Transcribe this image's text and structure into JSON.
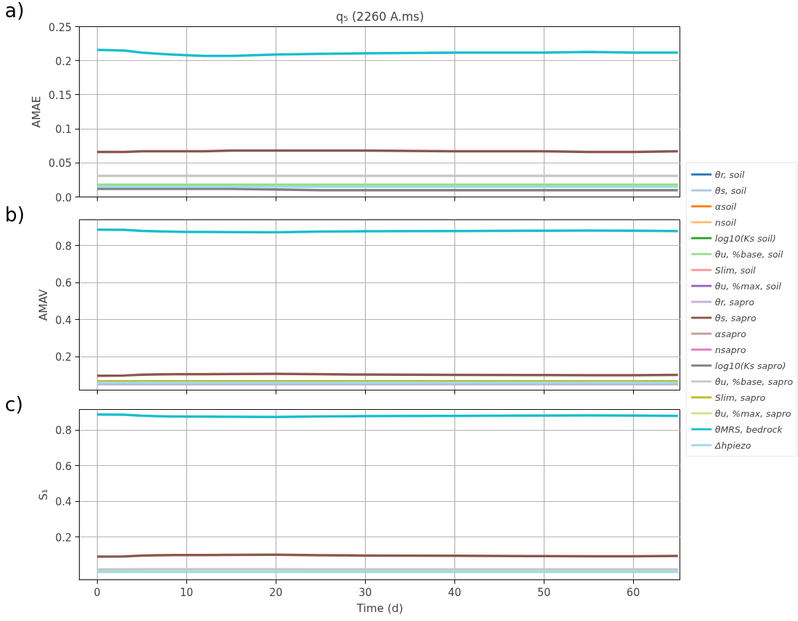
{
  "chart_data": [
    {
      "type": "line",
      "title": "q₅ (2260 A.ms)",
      "ylabel": "AMAE",
      "annotations": [
        "a)"
      ],
      "x": [
        0,
        3,
        5,
        7,
        10,
        12,
        15,
        20,
        25,
        30,
        40,
        50,
        55,
        60,
        65
      ],
      "xlim": [
        -2,
        65.3
      ],
      "xticks": [
        0,
        10,
        20,
        30,
        40,
        50,
        60
      ],
      "ylim": [
        0,
        0.25
      ],
      "yticks": [
        {
          "value": 0,
          "label": "0.0"
        },
        0.05,
        {
          "value": 0.1,
          "label": "0.1"
        },
        0.15,
        {
          "value": 0.2,
          "label": "0.2"
        },
        0.25
      ],
      "tick_labels": "y",
      "grid": true,
      "series": [
        {
          "color": "#7f7f7f",
          "values": [
            0.012,
            0.012,
            0.012,
            0.012,
            0.012,
            0.012,
            0.012,
            0.011,
            0.01,
            0.01,
            0.01,
            0.01,
            0.01,
            0.01,
            0.01
          ]
        },
        {
          "color": "#98df8a",
          "values": [
            0.018,
            0.018,
            0.018,
            0.018,
            0.018,
            0.018,
            0.018,
            0.018,
            0.018,
            0.018,
            0.018,
            0.018,
            0.018,
            0.018,
            0.018
          ]
        },
        {
          "color": "#9edae5",
          "values": [
            0.015,
            0.015,
            0.015,
            0.015,
            0.015,
            0.015,
            0.015,
            0.015,
            0.015,
            0.015,
            0.015,
            0.015,
            0.015,
            0.015,
            0.015
          ]
        },
        {
          "color": "#c7c7c7",
          "values": [
            0.031,
            0.031,
            0.031,
            0.031,
            0.031,
            0.031,
            0.031,
            0.031,
            0.031,
            0.031,
            0.031,
            0.031,
            0.031,
            0.031,
            0.031
          ]
        },
        {
          "color": "#8c564b",
          "values": [
            0.066,
            0.066,
            0.067,
            0.067,
            0.067,
            0.067,
            0.068,
            0.068,
            0.068,
            0.068,
            0.067,
            0.067,
            0.066,
            0.066,
            0.067
          ]
        },
        {
          "color": "#17becf",
          "values": [
            0.216,
            0.215,
            0.212,
            0.21,
            0.208,
            0.207,
            0.207,
            0.209,
            0.21,
            0.211,
            0.212,
            0.212,
            0.213,
            0.212,
            0.212
          ]
        }
      ]
    },
    {
      "type": "line",
      "ylabel": "AMAV",
      "annotations": [
        "b)"
      ],
      "x": [
        0,
        3,
        5,
        7,
        10,
        12,
        15,
        20,
        25,
        30,
        40,
        50,
        55,
        60,
        65
      ],
      "xlim": [
        -2,
        65.3
      ],
      "xticks": [
        0,
        10,
        20,
        30,
        40,
        50,
        60
      ],
      "ylim": [
        0.02,
        0.94
      ],
      "yticks": [
        0.2,
        0.4,
        0.6,
        0.8
      ],
      "tick_labels": "y",
      "grid": true,
      "legend": "right",
      "series": [
        {
          "name": "θr, soil",
          "color": "#1f77b4",
          "values": [
            null,
            null,
            null,
            null,
            null,
            null,
            null,
            null,
            null,
            null,
            null,
            null,
            null,
            null,
            null
          ]
        },
        {
          "name": "θs, soil",
          "color": "#aec7e8",
          "values": [
            null,
            null,
            null,
            null,
            null,
            null,
            null,
            null,
            null,
            null,
            null,
            null,
            null,
            null,
            null
          ]
        },
        {
          "name": "αsoil",
          "color": "#ff7f0e",
          "values": [
            null,
            null,
            null,
            null,
            null,
            null,
            null,
            null,
            null,
            null,
            null,
            null,
            null,
            null,
            null
          ]
        },
        {
          "name": "nsoil",
          "color": "#ffbb78",
          "values": [
            null,
            null,
            null,
            null,
            null,
            null,
            null,
            null,
            null,
            null,
            null,
            null,
            null,
            null,
            null
          ]
        },
        {
          "name": "log10(Ks soil)",
          "color": "#2ca02c",
          "values": [
            null,
            null,
            null,
            null,
            null,
            null,
            null,
            null,
            null,
            null,
            null,
            null,
            null,
            null,
            null
          ]
        },
        {
          "name": "θu, %base, soil",
          "color": "#98df8a",
          "values": [
            null,
            null,
            null,
            null,
            null,
            null,
            null,
            null,
            null,
            null,
            null,
            null,
            null,
            null,
            null
          ]
        },
        {
          "name": "Slim, soil",
          "color": "#ff9896",
          "values": [
            null,
            null,
            null,
            null,
            null,
            null,
            null,
            null,
            null,
            null,
            null,
            null,
            null,
            null,
            null
          ]
        },
        {
          "name": "θu, %max, soil",
          "color": "#9467bd",
          "values": [
            null,
            null,
            null,
            null,
            null,
            null,
            null,
            null,
            null,
            null,
            null,
            null,
            null,
            null,
            null
          ]
        },
        {
          "name": "θr, sapro",
          "color": "#c5b0d5",
          "values": [
            0.052,
            0.052,
            0.052,
            0.052,
            0.052,
            0.052,
            0.052,
            0.052,
            0.052,
            0.052,
            0.052,
            0.052,
            0.052,
            0.052,
            0.052
          ]
        },
        {
          "name": "θs, sapro",
          "color": "#8c564b",
          "values": [
            0.098,
            0.099,
            0.103,
            0.105,
            0.106,
            0.106,
            0.107,
            0.108,
            0.106,
            0.104,
            0.102,
            0.101,
            0.1,
            0.1,
            0.102
          ]
        },
        {
          "name": "αsapro",
          "color": "#c49c94",
          "values": [
            null,
            null,
            null,
            null,
            null,
            null,
            null,
            null,
            null,
            null,
            null,
            null,
            null,
            null,
            null
          ]
        },
        {
          "name": "nsapro",
          "color": "#e377c2",
          "values": [
            null,
            null,
            null,
            null,
            null,
            null,
            null,
            null,
            null,
            null,
            null,
            null,
            null,
            null,
            null
          ]
        },
        {
          "name": "log10(Ks sapro)",
          "color": "#7f7f7f",
          "values": [
            null,
            null,
            null,
            null,
            null,
            null,
            null,
            null,
            null,
            null,
            null,
            null,
            null,
            null,
            null
          ]
        },
        {
          "name": "θu, %base, sapro",
          "color": "#c7c7c7",
          "values": [
            null,
            null,
            null,
            null,
            null,
            null,
            null,
            null,
            null,
            null,
            null,
            null,
            null,
            null,
            null
          ]
        },
        {
          "name": "Slim, sapro",
          "color": "#bcbd22",
          "values": [
            0.068,
            0.068,
            0.068,
            0.068,
            0.068,
            0.068,
            0.068,
            0.068,
            0.068,
            0.068,
            0.068,
            0.068,
            0.068,
            0.068,
            0.068
          ]
        },
        {
          "name": "θu, %max, sapro",
          "color": "#dbdb8d",
          "values": [
            null,
            null,
            null,
            null,
            null,
            null,
            null,
            null,
            null,
            null,
            null,
            null,
            null,
            null,
            null
          ]
        },
        {
          "name": "θMRS, bedrock",
          "color": "#17becf",
          "values": [
            0.887,
            0.886,
            0.88,
            0.877,
            0.875,
            0.875,
            0.874,
            0.873,
            0.876,
            0.878,
            0.879,
            0.881,
            0.882,
            0.881,
            0.879
          ]
        },
        {
          "name": "Δhpiezo",
          "color": "#9edae5",
          "values": [
            0.06,
            0.06,
            0.06,
            0.06,
            0.06,
            0.06,
            0.06,
            0.06,
            0.06,
            0.06,
            0.06,
            0.06,
            0.06,
            0.06,
            0.06
          ]
        }
      ]
    },
    {
      "type": "line",
      "xlabel": "Time (d)",
      "ylabel": "S₁",
      "annotations": [
        "c)"
      ],
      "x": [
        0,
        3,
        5,
        7,
        10,
        12,
        15,
        20,
        25,
        30,
        40,
        50,
        55,
        60,
        65
      ],
      "xlim": [
        -2,
        65.3
      ],
      "xticks": [
        0,
        10,
        20,
        30,
        40,
        50,
        60
      ],
      "ylim": [
        -0.04,
        0.915
      ],
      "yticks": [
        0.2,
        0.4,
        0.6,
        0.8
      ],
      "grid": true,
      "series": [
        {
          "color": "#c7c7c7",
          "values": [
            0.018,
            0.018,
            0.019,
            0.019,
            0.019,
            0.019,
            0.019,
            0.019,
            0.018,
            0.018,
            0.018,
            0.018,
            0.018,
            0.018,
            0.018
          ]
        },
        {
          "color": "#9edae5",
          "values": [
            0.005,
            0.005,
            0.005,
            0.005,
            0.005,
            0.005,
            0.005,
            0.005,
            0.005,
            0.005,
            0.005,
            0.005,
            0.005,
            0.005,
            0.005
          ]
        },
        {
          "color": "#8c564b",
          "values": [
            0.09,
            0.091,
            0.096,
            0.098,
            0.099,
            0.099,
            0.1,
            0.101,
            0.098,
            0.096,
            0.095,
            0.093,
            0.092,
            0.092,
            0.094
          ]
        },
        {
          "color": "#17becf",
          "values": [
            0.887,
            0.886,
            0.88,
            0.877,
            0.875,
            0.875,
            0.874,
            0.873,
            0.876,
            0.878,
            0.879,
            0.881,
            0.882,
            0.881,
            0.879
          ]
        }
      ]
    }
  ]
}
